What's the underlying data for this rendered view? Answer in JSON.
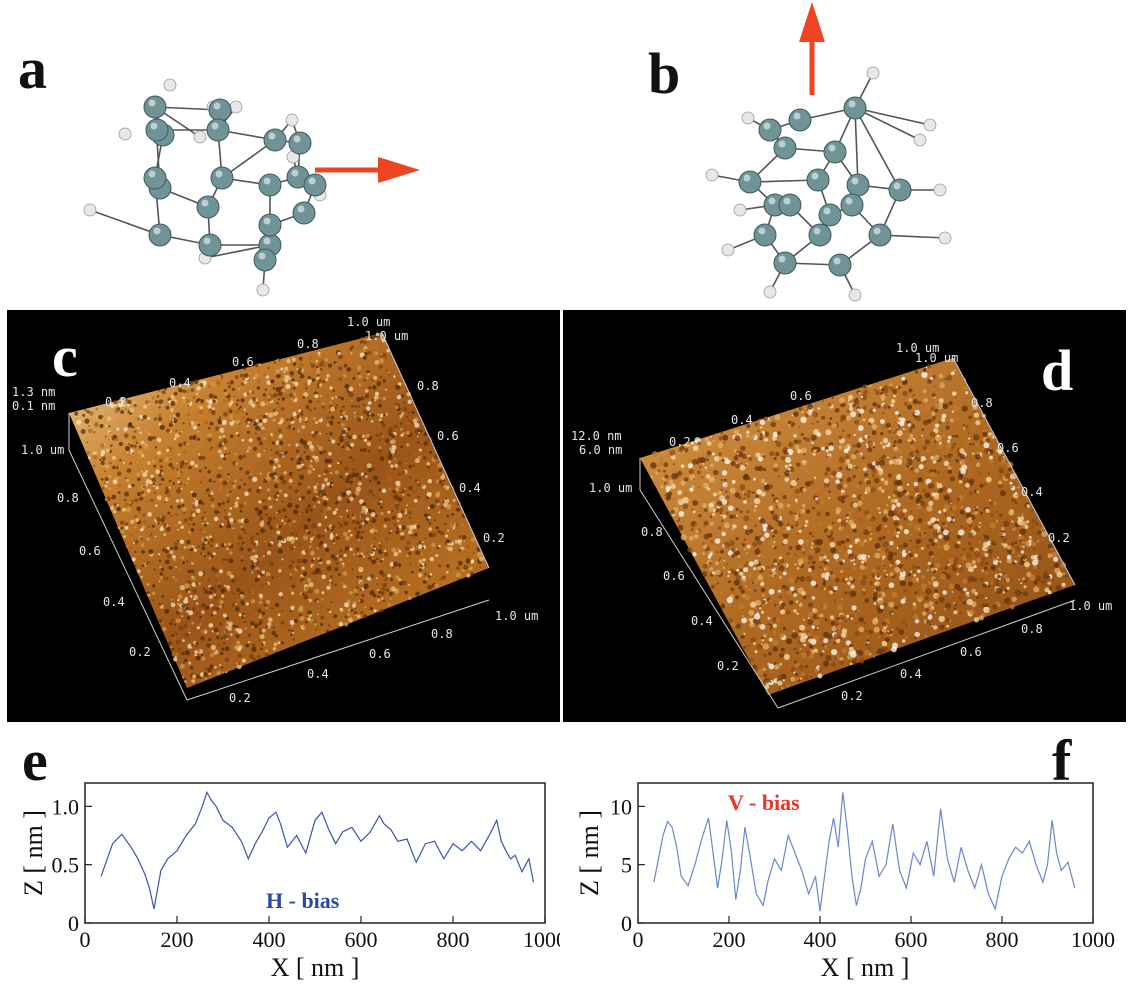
{
  "panels": {
    "a": "a",
    "b": "b",
    "c": "c",
    "d": "d",
    "e": "e",
    "f": "f"
  },
  "afm_c": {
    "z_max": "1.3 nm",
    "z_min": "0.1 nm",
    "corner_top": "1.0 um",
    "corner_top2": "1.0 um",
    "corner_left": "1.0 um",
    "corner_right": "1.0 um",
    "back_ticks": [
      "0.2",
      "0.4",
      "0.6",
      "0.8"
    ],
    "left_ticks": [
      "0.8",
      "0.6",
      "0.4",
      "0.2"
    ],
    "right_ticks": [
      "0.8",
      "0.6",
      "0.4",
      "0.2"
    ],
    "bottom_ticks": [
      "0.2",
      "0.4",
      "0.6",
      "0.8"
    ]
  },
  "afm_d": {
    "z_max": "12.0 nm",
    "z_min": "6.0 nm",
    "corner_top": "1.0 um",
    "corner_top2": "1.0 um",
    "corner_left": "1.0 um",
    "corner_right": "1.0 um",
    "back_ticks": [
      "0.2",
      "0.4",
      "0.6"
    ],
    "left_ticks": [
      "0.8",
      "0.6",
      "0.4",
      "0.2"
    ],
    "right_ticks": [
      "0.8",
      "0.6",
      "0.4",
      "0.2"
    ],
    "bottom_ticks": [
      "0.2",
      "0.4",
      "0.6",
      "0.8"
    ]
  },
  "colors": {
    "arrow": "#ee4422",
    "atom_c": "#6f9396",
    "atom_h": "#e8e8e8",
    "line_e": "#3a55b0",
    "line_f": "#6a86cc",
    "label_e": "#2a4aa0",
    "label_f": "#ee3322"
  },
  "chart_data": [
    {
      "type": "line",
      "panel": "e",
      "title": "",
      "annotation": "H - bias",
      "xlabel": "X [ nm ]",
      "ylabel": "Z [ nm ]",
      "xlim": [
        0,
        1000
      ],
      "ylim": [
        0,
        1.2
      ],
      "xticks": [
        "0",
        "200",
        "400",
        "600",
        "800",
        "1000"
      ],
      "yticks": [
        "0",
        "0.5",
        "1.0"
      ],
      "ytick_values": [
        0,
        0.5,
        1.0
      ],
      "series": [
        {
          "x": [
            35,
            60,
            80,
            100,
            115,
            130,
            140,
            150,
            165,
            180,
            200,
            220,
            240,
            255,
            265,
            275,
            285,
            300,
            320,
            340,
            355,
            370,
            385,
            400,
            415,
            425,
            440,
            460,
            480,
            500,
            515,
            530,
            545,
            560,
            580,
            600,
            620,
            640,
            650,
            665,
            680,
            700,
            720,
            740,
            760,
            780,
            800,
            820,
            840,
            860,
            880,
            895,
            905,
            915,
            925,
            935,
            950,
            965,
            975
          ],
          "y": [
            0.4,
            0.68,
            0.76,
            0.65,
            0.55,
            0.42,
            0.3,
            0.12,
            0.45,
            0.55,
            0.62,
            0.75,
            0.85,
            1.0,
            1.12,
            1.05,
            1.0,
            0.88,
            0.82,
            0.7,
            0.55,
            0.68,
            0.78,
            0.9,
            0.95,
            0.85,
            0.65,
            0.75,
            0.6,
            0.88,
            0.95,
            0.8,
            0.68,
            0.78,
            0.82,
            0.7,
            0.78,
            0.92,
            0.85,
            0.8,
            0.7,
            0.72,
            0.52,
            0.68,
            0.7,
            0.55,
            0.68,
            0.62,
            0.7,
            0.62,
            0.76,
            0.88,
            0.7,
            0.62,
            0.55,
            0.58,
            0.44,
            0.55,
            0.35
          ]
        }
      ]
    },
    {
      "type": "line",
      "panel": "f",
      "title": "",
      "annotation": "V - bias",
      "xlabel": "X [ nm ]",
      "ylabel": "Z [ nm ]",
      "xlim": [
        0,
        1000
      ],
      "ylim": [
        0,
        12
      ],
      "xticks": [
        "0",
        "200",
        "400",
        "600",
        "800",
        "1000"
      ],
      "yticks": [
        "0",
        "5",
        "10"
      ],
      "ytick_values": [
        0,
        5,
        10
      ],
      "series": [
        {
          "x": [
            35,
            45,
            55,
            65,
            75,
            85,
            95,
            110,
            125,
            140,
            155,
            165,
            175,
            185,
            195,
            205,
            215,
            225,
            235,
            245,
            260,
            275,
            285,
            300,
            315,
            330,
            345,
            360,
            375,
            390,
            400,
            410,
            420,
            430,
            440,
            450,
            460,
            470,
            480,
            490,
            500,
            515,
            530,
            545,
            560,
            575,
            590,
            605,
            620,
            635,
            650,
            665,
            680,
            695,
            710,
            725,
            740,
            755,
            770,
            785,
            800,
            815,
            830,
            845,
            860,
            875,
            890,
            900,
            910,
            920,
            930,
            945,
            960
          ],
          "y": [
            3.5,
            5.5,
            7.5,
            8.7,
            8.2,
            6.5,
            4.0,
            3.2,
            5.0,
            7.2,
            9.0,
            6.0,
            3.0,
            5.5,
            8.8,
            6.2,
            2.0,
            4.5,
            8.2,
            6.0,
            2.5,
            1.5,
            3.5,
            5.5,
            4.5,
            7.5,
            6.0,
            4.5,
            2.5,
            4.0,
            1.0,
            4.0,
            7.0,
            9.0,
            6.5,
            11.2,
            8.0,
            4.0,
            1.5,
            3.0,
            5.5,
            7.0,
            4.0,
            5.0,
            8.5,
            4.5,
            3.0,
            6.0,
            5.0,
            7.0,
            4.0,
            9.8,
            5.5,
            3.5,
            6.5,
            4.5,
            3.0,
            5.0,
            2.5,
            1.2,
            4.0,
            5.5,
            6.5,
            6.0,
            7.0,
            5.0,
            3.5,
            5.0,
            8.8,
            6.0,
            4.5,
            5.2,
            3.0
          ]
        }
      ]
    }
  ]
}
